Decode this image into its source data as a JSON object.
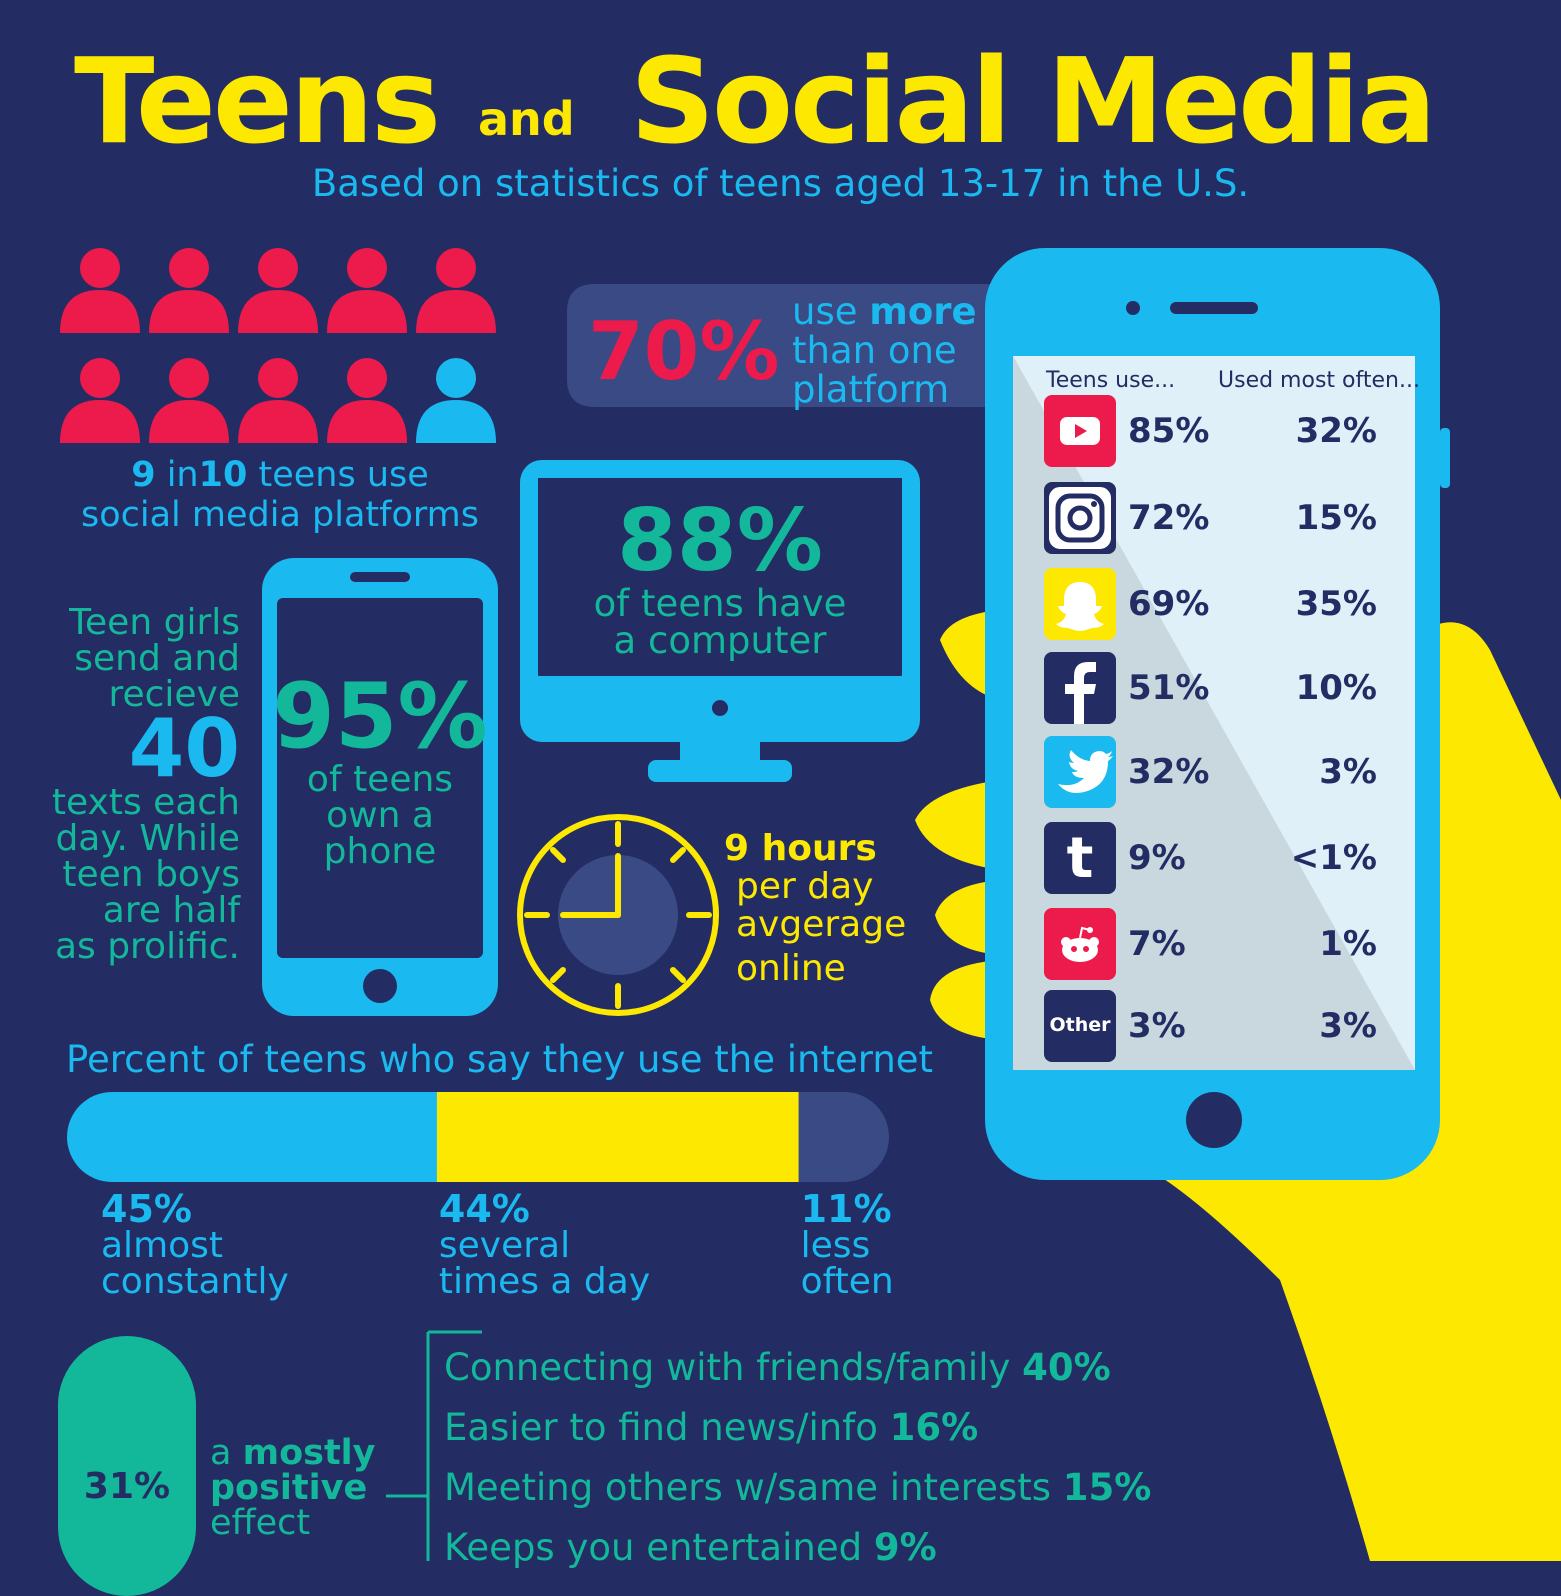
{
  "header": {
    "title_part1": "Teens",
    "title_and": "and",
    "title_part2": "Social Media",
    "subtitle": "Based on statistics of teens aged 13-17 in the U.S."
  },
  "people_stat": {
    "count_highlighted": 9,
    "count_total": 10,
    "num1": "9",
    "in": "in",
    "num2": "10",
    "line1_rest": "teens use",
    "line2": "social media platforms"
  },
  "platforms_bubble": {
    "percent": "70%",
    "use": "use",
    "more": "more",
    "line2": "than one",
    "line3": "platform"
  },
  "computer_stat": {
    "percent": "88%",
    "line1": "of teens have",
    "line2": "a computer"
  },
  "phone_stat": {
    "percent": "95%",
    "line1": "of teens",
    "line2": "own a",
    "line3": "phone"
  },
  "texts_stat": {
    "line1": "Teen girls",
    "line2": "send and",
    "line3": "recieve",
    "number": "40",
    "line4": "texts each",
    "line5": "day. While",
    "line6": "teen boys",
    "line7": "are half",
    "line8": "as prolific."
  },
  "online_stat": {
    "hours": "9 hours",
    "line2": "per day",
    "line3": "avgerage",
    "line4": "online"
  },
  "phone_table": {
    "col1_header": "Teens use...",
    "col2_header": "Used most often...",
    "rows": [
      {
        "platform": "youtube-icon",
        "use": "85%",
        "most": "32%",
        "color": "#ec1b4b"
      },
      {
        "platform": "instagram-icon",
        "use": "72%",
        "most": "15%",
        "color": "#232c63"
      },
      {
        "platform": "snapchat-icon",
        "use": "69%",
        "most": "35%",
        "color": "#fce800"
      },
      {
        "platform": "facebook-icon",
        "use": "51%",
        "most": "10%",
        "color": "#232c63"
      },
      {
        "platform": "twitter-icon",
        "use": "32%",
        "most": "3%",
        "color": "#1ab9ef"
      },
      {
        "platform": "tumblr-icon",
        "use": "9%",
        "most": "<1%",
        "color": "#232c63"
      },
      {
        "platform": "reddit-icon",
        "use": "7%",
        "most": "1%",
        "color": "#ec1b4b"
      },
      {
        "platform": "other-icon",
        "use": "3%",
        "most": "3%",
        "color": "#232c63",
        "label": "Other"
      }
    ]
  },
  "internet_use": {
    "title": "Percent of teens who say they use the internet",
    "segments": [
      {
        "value": 45,
        "pct": "45%",
        "line1": "almost",
        "line2": "constantly",
        "color": "#1ab9ef"
      },
      {
        "value": 44,
        "pct": "44%",
        "line1": "several",
        "line2": "times a day",
        "color": "#fce800"
      },
      {
        "value": 11,
        "pct": "11%",
        "line1": "less",
        "line2": "often",
        "color": "#3a4a85"
      }
    ]
  },
  "effects": {
    "positive_pct": "31%",
    "a": "a",
    "mostly": "mostly",
    "positive": "positive",
    "effect": "effect",
    "reasons": [
      {
        "text": "Connecting with friends/family",
        "pct": "40%"
      },
      {
        "text": "Easier to find news/info",
        "pct": "16%"
      },
      {
        "text": "Meeting others w/same interests",
        "pct": "15%"
      },
      {
        "text": "Keeps you entertained",
        "pct": "9%"
      }
    ]
  }
}
